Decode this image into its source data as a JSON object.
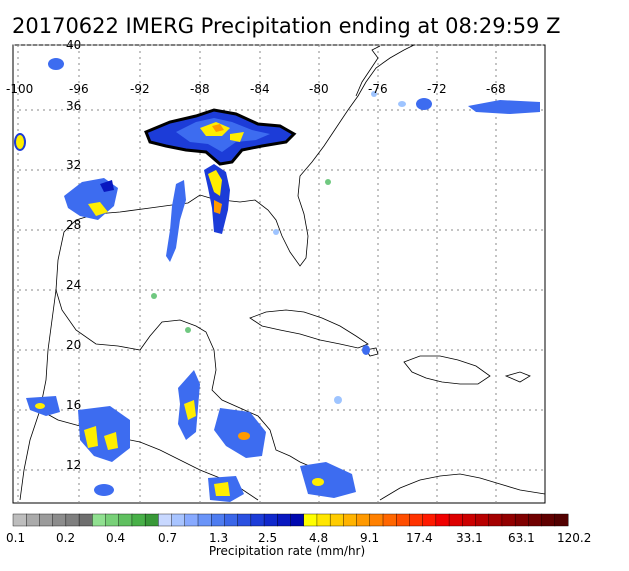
{
  "title": "20170622 IMERG Precipitation ending at 08:29:59 Z",
  "lat_labels": [
    "40",
    "36",
    "32",
    "28",
    "24",
    "20",
    "16",
    "12"
  ],
  "lon_labels": [
    "-100",
    "-96",
    "-92",
    "-88",
    "-84",
    "-80",
    "-76",
    "-72",
    "-68"
  ],
  "colorbar": {
    "tick_labels": [
      "0.1",
      "0.2",
      "0.4",
      "0.7",
      "1.3",
      "2.5",
      "4.8",
      "9.1",
      "17.4",
      "33.1",
      "63.1",
      "120.2"
    ],
    "axis_label": "Precipitation rate (mm/hr)",
    "colors": [
      "#bdbdbd",
      "#aaaaaa",
      "#9b9b9b",
      "#8c8c8c",
      "#7f7f7f",
      "#6e6e6e",
      "#90e090",
      "#78d078",
      "#60c060",
      "#48b048",
      "#389838",
      "#c8d8ff",
      "#a8c4ff",
      "#88aaff",
      "#6a94f8",
      "#4e7cf0",
      "#3a66e8",
      "#2a50e0",
      "#1c3cd8",
      "#1028cc",
      "#0818c0",
      "#0008b0",
      "#ffff00",
      "#ffe600",
      "#ffcc00",
      "#ffb300",
      "#ff9900",
      "#ff8000",
      "#ff6600",
      "#ff4d00",
      "#ff3300",
      "#ff1a00",
      "#f00000",
      "#dd0000",
      "#cc0000",
      "#b80000",
      "#a40000",
      "#920000",
      "#800000",
      "#700000",
      "#600000",
      "#520000"
    ]
  },
  "precip_colors": {
    "light": "#9ec4ff",
    "mid": "#3d6cf0",
    "heavy": "#0a1ac4",
    "yellow": "#ffee00",
    "orange": "#ff9a00",
    "red": "#e00000",
    "green": "#70c880"
  }
}
